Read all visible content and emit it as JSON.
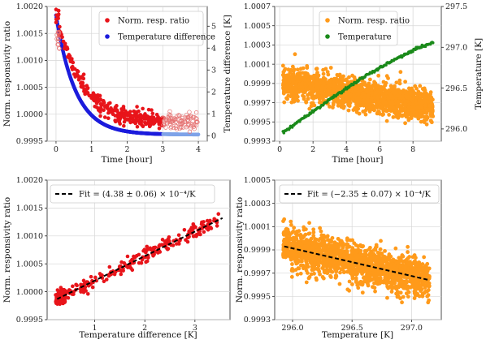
{
  "colors": {
    "red": "#e8141a",
    "red_hollow": "#e57373",
    "blue": "#1c1cdc",
    "blue_light": "#7fa3e8",
    "green": "#1a8a1a",
    "orange": "#ff9a1a",
    "fit": "#000000"
  },
  "chart_data": [
    {
      "id": "A",
      "type": "scatter",
      "xlabel": "Time [hour]",
      "ylabel": "Norm. responsivity ratio",
      "y2label": "Temperature difference [K]",
      "xlim": [
        -0.25,
        4.25
      ],
      "ylim": [
        0.9995,
        1.002
      ],
      "y2lim": [
        -0.25,
        5.9
      ],
      "xticks": [
        0,
        1,
        2,
        3,
        4
      ],
      "xtick_labels": [
        "0",
        "1",
        "2",
        "3",
        "4"
      ],
      "yticks": [
        0.9995,
        1.0,
        1.0005,
        1.001,
        1.0015,
        1.002
      ],
      "ytick_labels": [
        "0.9995",
        "1.0000",
        "1.0005",
        "1.0010",
        "1.0015",
        "1.0020"
      ],
      "y2ticks": [
        0,
        1,
        2,
        3,
        4,
        5
      ],
      "y2tick_labels": [
        "0",
        "1",
        "2",
        "3",
        "4",
        "5"
      ],
      "legend": {
        "position": "top-right",
        "entries": [
          {
            "label": "Norm. resp. ratio",
            "color": "red"
          },
          {
            "label": "Temperature difference",
            "color": "blue"
          }
        ]
      },
      "ratio_model": {
        "x_range": [
          0,
          4
        ],
        "value_at_start": 1.0019,
        "plateau": 0.99985,
        "tau_hours": 0.7,
        "filled_until": 3.0,
        "hollow_after": 3.0,
        "approx_points": 380
      },
      "temp_diff_model": {
        "x_range": [
          0,
          4
        ],
        "value_at_start": 5.5,
        "plateau": 0.05,
        "tau_hours": 0.55,
        "dark_until": 3.0,
        "light_after": 3.0
      },
      "grid": true
    },
    {
      "id": "B",
      "type": "scatter",
      "xlabel": "Time [hour]",
      "ylabel": "",
      "y2label": "Temperature [K]",
      "xlim": [
        -0.3,
        9.7
      ],
      "ylim": [
        0.9993,
        1.0007
      ],
      "y2lim": [
        295.85,
        297.5
      ],
      "xticks": [
        0,
        2,
        4,
        6,
        8
      ],
      "xtick_labels": [
        "0",
        "2",
        "4",
        "6",
        "8"
      ],
      "yticks": [
        0.9993,
        0.9995,
        0.9997,
        0.9999,
        1.0001,
        1.0003,
        1.0005,
        1.0007
      ],
      "ytick_labels": [
        "0.9993",
        "0.9995",
        "0.9997",
        "0.9999",
        "1.0001",
        "1.0003",
        "1.0005",
        "1.0007"
      ],
      "y2ticks": [
        296.0,
        296.5,
        297.0,
        297.5
      ],
      "y2tick_labels": [
        "296.0",
        "296.5",
        "297.0",
        "297.5"
      ],
      "legend": {
        "position": "top-center",
        "entries": [
          {
            "label": "Norm. resp. ratio",
            "color": "orange"
          },
          {
            "label": "Temperature",
            "color": "green"
          }
        ]
      },
      "ratio_model": {
        "x_range": [
          0.2,
          9.2
        ],
        "value_at_start": 0.99991,
        "value_at_end": 0.99966,
        "approx_points": 1700
      },
      "temperature_model": {
        "x_range": [
          0.2,
          9.2
        ],
        "value_at_start": 295.95,
        "value_at_end": 297.05,
        "approx_points": 180
      },
      "grid": true
    },
    {
      "id": "C",
      "type": "scatter",
      "xlabel": "Temperature difference [K]",
      "ylabel": "Norm. responsivity ratio",
      "xlim": [
        0.05,
        3.7
      ],
      "ylim": [
        0.9995,
        1.002
      ],
      "xticks": [
        1,
        2,
        3
      ],
      "xtick_labels": [
        "1",
        "2",
        "3"
      ],
      "yticks": [
        0.9995,
        1.0,
        1.0005,
        1.001,
        1.0015,
        1.002
      ],
      "ytick_labels": [
        "0.9995",
        "1.0000",
        "1.0005",
        "1.0010",
        "1.0015",
        "1.0020"
      ],
      "legend": {
        "position": "top-left",
        "entries": [
          {
            "label": "Fit = (4.38 ± 0.06) × 10⁻⁴/K",
            "color": "fit",
            "style": "dashed"
          }
        ]
      },
      "fit": {
        "slope_per_K": 0.000438,
        "x_range": [
          0.25,
          3.55
        ],
        "y_at_x_min": 0.99987,
        "y_at_x_max": 1.00132
      },
      "points_model": {
        "x_range": [
          0.22,
          3.5
        ],
        "approx_points": 380
      },
      "grid": true
    },
    {
      "id": "D",
      "type": "scatter",
      "xlabel": "Temperature [K]",
      "ylabel": "Norm. responsivity ratio",
      "xlim": [
        295.85,
        297.25
      ],
      "ylim": [
        0.9993,
        1.0005
      ],
      "xticks": [
        296.0,
        296.5,
        297.0
      ],
      "xtick_labels": [
        "296.0",
        "296.5",
        "297.0"
      ],
      "yticks": [
        0.9993,
        0.9995,
        0.9997,
        0.9999,
        1.0001,
        1.0003,
        1.0005
      ],
      "ytick_labels": [
        "0.9993",
        "0.9995",
        "0.9997",
        "0.9999",
        "1.0001",
        "1.0003",
        "1.0005"
      ],
      "legend": {
        "position": "top-center",
        "entries": [
          {
            "label": "Fit = (−2.35 ± 0.07) × 10⁻⁴/K",
            "color": "fit",
            "style": "dashed"
          }
        ]
      },
      "fit": {
        "slope_per_K": -0.000235,
        "x_range": [
          295.93,
          297.15
        ],
        "y_at_x_min": 0.99993,
        "y_at_x_max": 0.99964
      },
      "points_model": {
        "x_range": [
          295.92,
          297.15
        ],
        "approx_points": 1700
      },
      "grid": true
    }
  ]
}
